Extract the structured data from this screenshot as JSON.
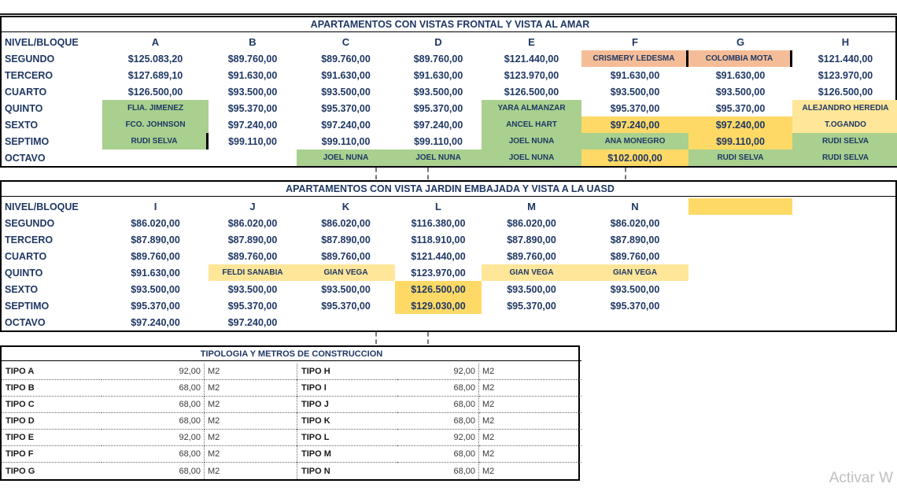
{
  "colors": {
    "navy": "#1f3864",
    "green": "#a9d08e",
    "salmon": "#f5bd97",
    "gold": "#ffd966",
    "lightgold": "#ffe699"
  },
  "watermark": "Activar W",
  "table_sea": {
    "title": "APARTAMENTOS CON VISTAS FRONTAL Y VISTA AL AMAR",
    "header": [
      {
        "t": "NIVEL/BLOQUE"
      },
      {
        "t": "A"
      },
      {
        "t": "B"
      },
      {
        "t": "C"
      },
      {
        "t": "D"
      },
      {
        "t": "E"
      },
      {
        "t": "F"
      },
      {
        "t": "G"
      },
      {
        "t": "H"
      }
    ],
    "rows": [
      {
        "label": "SEGUNDO",
        "cells": [
          {
            "t": "$125.083,20"
          },
          {
            "t": "$89.760,00"
          },
          {
            "t": "$89.760,00"
          },
          {
            "t": "$89.760,00"
          },
          {
            "t": "$121.440,00"
          },
          {
            "t": "CRISMERY LEDESMA",
            "bg": "salmon",
            "br": true
          },
          {
            "t": "COLOMBIA MOTA",
            "bg": "salmon",
            "br": true
          },
          {
            "t": "$121.440,00"
          }
        ]
      },
      {
        "label": "TERCERO",
        "cells": [
          {
            "t": "$127.689,10"
          },
          {
            "t": "$91.630,00"
          },
          {
            "t": "$91.630,00"
          },
          {
            "t": "$91.630,00"
          },
          {
            "t": "$123.970,00"
          },
          {
            "t": "$91.630,00"
          },
          {
            "t": "$91.630,00"
          },
          {
            "t": "$123.970,00"
          }
        ]
      },
      {
        "label": "CUARTO",
        "cells": [
          {
            "t": "$126.500,00"
          },
          {
            "t": "$93.500,00"
          },
          {
            "t": "$93.500,00"
          },
          {
            "t": "$93.500,00"
          },
          {
            "t": "$126.500,00"
          },
          {
            "t": "$93.500,00"
          },
          {
            "t": "$93.500,00"
          },
          {
            "t": "$126.500,00"
          }
        ]
      },
      {
        "label": "QUINTO",
        "cells": [
          {
            "t": "FLIA. JIMENEZ",
            "bg": "green"
          },
          {
            "t": "$95.370,00"
          },
          {
            "t": "$95.370,00"
          },
          {
            "t": "$95.370,00"
          },
          {
            "t": "YARA ALMANZAR",
            "bg": "green"
          },
          {
            "t": "$95.370,00"
          },
          {
            "t": "$95.370,00"
          },
          {
            "t": "ALEJANDRO HEREDIA",
            "bg": "lightgold"
          }
        ]
      },
      {
        "label": "SEXTO",
        "cells": [
          {
            "t": "FCO. JOHNSON",
            "bg": "green"
          },
          {
            "t": "$97.240,00"
          },
          {
            "t": "$97.240,00"
          },
          {
            "t": "$97.240,00"
          },
          {
            "t": "ANCEL HART",
            "bg": "green"
          },
          {
            "t": "$97.240,00",
            "bg": "gold"
          },
          {
            "t": "$97.240,00",
            "bg": "gold"
          },
          {
            "t": "T.OGANDO",
            "bg": "lightgold"
          }
        ]
      },
      {
        "label": "SEPTIMO",
        "cells": [
          {
            "t": "RUDI SELVA",
            "bg": "green",
            "br": true
          },
          {
            "t": "$99.110,00"
          },
          {
            "t": "$99.110,00"
          },
          {
            "t": "$99.110,00"
          },
          {
            "t": "JOEL NUNA",
            "bg": "green"
          },
          {
            "t": "ANA MONEGRO",
            "bg": "green"
          },
          {
            "t": "$99.110,00",
            "bg": "gold"
          },
          {
            "t": "RUDI SELVA",
            "bg": "green"
          }
        ]
      },
      {
        "label": "OCTAVO",
        "cells": [
          {
            "t": ""
          },
          {
            "t": ""
          },
          {
            "t": "JOEL NUNA",
            "bg": "green"
          },
          {
            "t": "JOEL NUNA",
            "bg": "green"
          },
          {
            "t": "JOEL NUNA",
            "bg": "green"
          },
          {
            "t": "$102.000,00",
            "bg": "gold"
          },
          {
            "t": "RUDI SELVA",
            "bg": "green"
          },
          {
            "t": "RUDI SELVA",
            "bg": "green"
          }
        ]
      }
    ]
  },
  "table_garden": {
    "title": "APARTAMENTOS CON VISTA JARDIN EMBAJADA Y VISTA A LA UASD",
    "header": [
      {
        "t": "NIVEL/BLOQUE"
      },
      {
        "t": "I"
      },
      {
        "t": "J"
      },
      {
        "t": "K"
      },
      {
        "t": "L"
      },
      {
        "t": "M"
      },
      {
        "t": "N"
      },
      {
        "t": "",
        "bg": "gold"
      },
      {
        "t": ""
      }
    ],
    "rows": [
      {
        "label": "SEGUNDO",
        "cells": [
          {
            "t": "$86.020,00"
          },
          {
            "t": "$86.020,00"
          },
          {
            "t": "$86.020,00"
          },
          {
            "t": "$116.380,00"
          },
          {
            "t": "$86.020,00"
          },
          {
            "t": "$86.020,00"
          },
          {
            "t": ""
          },
          {
            "t": ""
          }
        ]
      },
      {
        "label": "TERCERO",
        "cells": [
          {
            "t": "$87.890,00"
          },
          {
            "t": "$87.890,00"
          },
          {
            "t": "$87.890,00"
          },
          {
            "t": "$118.910,00"
          },
          {
            "t": "$87.890,00"
          },
          {
            "t": "$87.890,00"
          },
          {
            "t": ""
          },
          {
            "t": ""
          }
        ]
      },
      {
        "label": "CUARTO",
        "cells": [
          {
            "t": "$89.760,00"
          },
          {
            "t": "$89.760,00"
          },
          {
            "t": "$89.760,00"
          },
          {
            "t": "$121.440,00"
          },
          {
            "t": "$89.760,00"
          },
          {
            "t": "$89.760,00"
          },
          {
            "t": ""
          },
          {
            "t": ""
          }
        ]
      },
      {
        "label": "QUINTO",
        "cells": [
          {
            "t": "$91.630,00"
          },
          {
            "t": "FELDI SANABIA",
            "bg": "lightgold"
          },
          {
            "t": "GIAN VEGA",
            "bg": "lightgold"
          },
          {
            "t": "$123.970,00"
          },
          {
            "t": "GIAN VEGA",
            "bg": "lightgold"
          },
          {
            "t": "GIAN VEGA",
            "bg": "lightgold"
          },
          {
            "t": ""
          },
          {
            "t": ""
          }
        ]
      },
      {
        "label": "SEXTO",
        "cells": [
          {
            "t": "$93.500,00"
          },
          {
            "t": "$93.500,00"
          },
          {
            "t": "$93.500,00"
          },
          {
            "t": "$126.500,00",
            "bg": "gold"
          },
          {
            "t": "$93.500,00"
          },
          {
            "t": "$93.500,00"
          },
          {
            "t": ""
          },
          {
            "t": ""
          }
        ]
      },
      {
        "label": "SEPTIMO",
        "cells": [
          {
            "t": "$95.370,00"
          },
          {
            "t": "$95.370,00"
          },
          {
            "t": "$95.370,00"
          },
          {
            "t": "$129.030,00",
            "bg": "gold"
          },
          {
            "t": "$95.370,00"
          },
          {
            "t": "$95.370,00"
          },
          {
            "t": ""
          },
          {
            "t": ""
          }
        ]
      },
      {
        "label": "OCTAVO",
        "cells": [
          {
            "t": "$97.240,00"
          },
          {
            "t": "$97.240,00"
          },
          {
            "t": ""
          },
          {
            "t": ""
          },
          {
            "t": ""
          },
          {
            "t": ""
          },
          {
            "t": ""
          },
          {
            "t": ""
          }
        ]
      }
    ]
  },
  "table_typology": {
    "title": "TIPOLOGIA Y METROS DE CONSTRUCCION",
    "rows": [
      {
        "left": {
          "tipo": "TIPO A",
          "val": "92,00",
          "unit": "M2"
        },
        "right": {
          "tipo": "TIPO H",
          "val": "92,00",
          "unit": "M2"
        }
      },
      {
        "left": {
          "tipo": "TIPO B",
          "val": "68,00",
          "unit": "M2"
        },
        "right": {
          "tipo": "TIPO I",
          "val": "68,00",
          "unit": "M2"
        }
      },
      {
        "left": {
          "tipo": "TIPO C",
          "val": "68,00",
          "unit": "M2"
        },
        "right": {
          "tipo": "TIPO J",
          "val": "68,00",
          "unit": "M2"
        }
      },
      {
        "left": {
          "tipo": "TIPO D",
          "val": "68,00",
          "unit": "M2"
        },
        "right": {
          "tipo": "TIPO K",
          "val": "68,00",
          "unit": "M2"
        }
      },
      {
        "left": {
          "tipo": "TIPO E",
          "val": "92,00",
          "unit": "M2"
        },
        "right": {
          "tipo": "TIPO L",
          "val": "92,00",
          "unit": "M2"
        }
      },
      {
        "left": {
          "tipo": "TIPO F",
          "val": "68,00",
          "unit": "M2"
        },
        "right": {
          "tipo": "TIPO M",
          "val": "68,00",
          "unit": "M2"
        }
      },
      {
        "left": {
          "tipo": "TIPO G",
          "val": "68,00",
          "unit": "M2"
        },
        "right": {
          "tipo": "TIPO N",
          "val": "68,00",
          "unit": "M2"
        }
      }
    ]
  }
}
